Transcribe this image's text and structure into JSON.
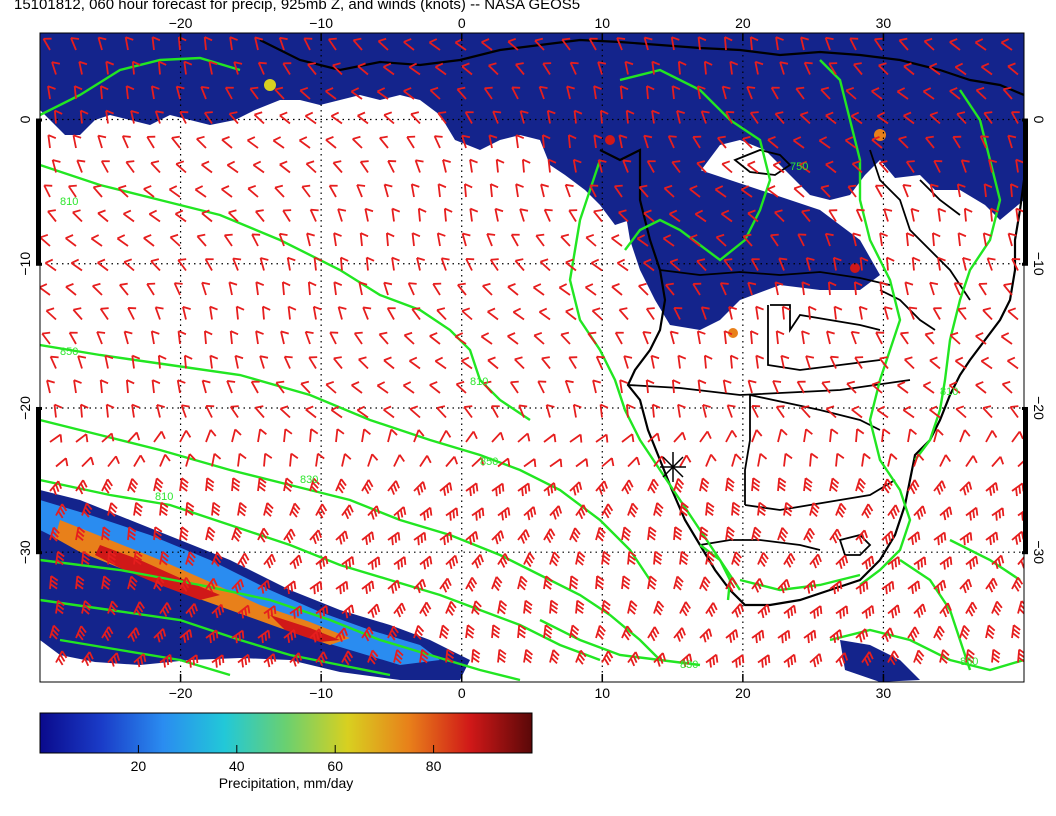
{
  "title": "15101812, 060 hour forecast for precip, 925mb Z, and winds (knots) -- NASA GEOS5",
  "map": {
    "lon_range": [
      -30,
      40
    ],
    "lat_range": [
      -39,
      6
    ],
    "lon_ticks": [
      -20,
      -10,
      0,
      10,
      20,
      30
    ],
    "lat_ticks": [
      0,
      -10,
      -20,
      -30
    ],
    "lon_tick_labels": [
      "−20",
      "−10",
      "0",
      "10",
      "20",
      "30"
    ],
    "lat_tick_labels": [
      "0",
      "−10",
      "−20",
      "−30"
    ],
    "contour_color": "#22e622",
    "barb_color": "#e61e1e",
    "land_outline_color": "#000000",
    "contour_labels": [
      "810",
      "850",
      "810",
      "810",
      "830",
      "850",
      "750",
      "830",
      "810",
      "850"
    ]
  },
  "colorbar": {
    "range": [
      0,
      100
    ],
    "tick_values": [
      20,
      40,
      60,
      80
    ],
    "tick_labels": [
      "20",
      "40",
      "60",
      "80"
    ],
    "title": "Precipitation, mm/day",
    "colors": [
      "#0a0a8c",
      "#1a3cc8",
      "#2a8cf0",
      "#22c8d8",
      "#6ad070",
      "#d8d020",
      "#e8801a",
      "#d01818",
      "#5a0808"
    ]
  }
}
